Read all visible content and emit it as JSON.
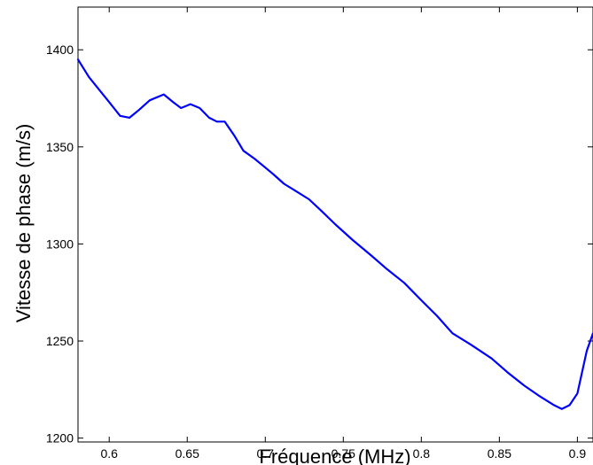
{
  "chart_data": {
    "type": "line",
    "title": "",
    "xlabel": "Fréquence (MHz)",
    "ylabel": "Vitesse de phase (m/s)",
    "xlim": [
      0.58,
      0.91
    ],
    "ylim": [
      1198,
      1422
    ],
    "xticks": [
      0.6,
      0.65,
      0.7,
      0.75,
      0.8,
      0.85,
      0.9
    ],
    "xtick_labels": [
      "0.6",
      "0.65",
      "0.7",
      "0.75",
      "0.8",
      "0.85",
      "0.9"
    ],
    "yticks": [
      1200,
      1250,
      1300,
      1350,
      1400
    ],
    "ytick_labels": [
      "1200",
      "1250",
      "1300",
      "1350",
      "1400"
    ],
    "grid": false,
    "line_color": "#0000ff",
    "series": [
      {
        "x": [
          0.58,
          0.587,
          0.595,
          0.601,
          0.607,
          0.613,
          0.619,
          0.626,
          0.635,
          0.641,
          0.646,
          0.652,
          0.658,
          0.664,
          0.669,
          0.674,
          0.68,
          0.686,
          0.693,
          0.699,
          0.705,
          0.712,
          0.72,
          0.728,
          0.736,
          0.745,
          0.756,
          0.768,
          0.778,
          0.789,
          0.8,
          0.81,
          0.82,
          0.832,
          0.845,
          0.855,
          0.866,
          0.875,
          0.885,
          0.89,
          0.895,
          0.9,
          0.906,
          0.91
        ],
        "y": [
          1395,
          1386,
          1378,
          1372,
          1366,
          1365,
          1369,
          1374,
          1377,
          1373,
          1370,
          1372,
          1370,
          1365,
          1363,
          1363,
          1356,
          1348,
          1344,
          1340,
          1336,
          1331,
          1327,
          1323,
          1317,
          1310,
          1302,
          1294,
          1287,
          1280,
          1271,
          1263,
          1254,
          1248,
          1241,
          1234,
          1227,
          1222,
          1217,
          1215,
          1217,
          1223,
          1245,
          1254
        ]
      }
    ]
  }
}
